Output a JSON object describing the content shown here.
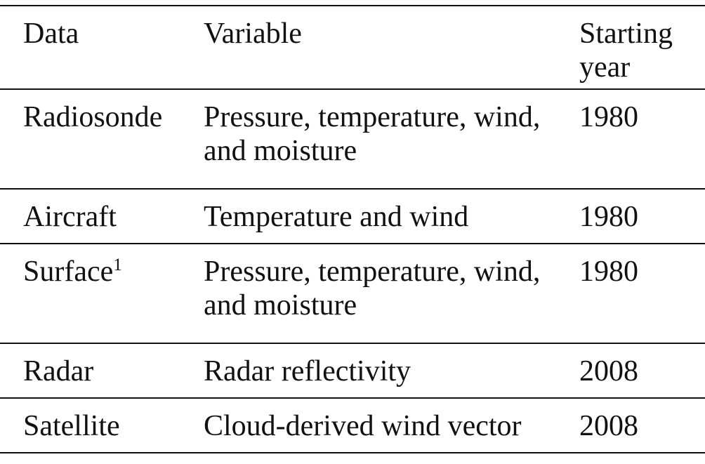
{
  "page": {
    "background_color": "#ffffff",
    "text_color": "#111111",
    "rule_color": "#121212"
  },
  "table": {
    "headers": [
      "Data",
      "Variable",
      "Starting year"
    ],
    "rows": [
      {
        "data": "Radiosonde",
        "sup": "",
        "variable": "Pressure, temperature, wind, and moisture",
        "starting_year": "1980"
      },
      {
        "data": "Aircraft",
        "sup": "",
        "variable": "Temperature and wind",
        "starting_year": "1980"
      },
      {
        "data": "Surface",
        "sup": "1",
        "variable": "Pressure, temperature, wind, and moisture",
        "starting_year": "1980"
      },
      {
        "data": "Radar",
        "sup": "",
        "variable": "Radar reflectivity",
        "starting_year": "2008"
      },
      {
        "data": "Satellite",
        "sup": "",
        "variable": "Cloud-derived wind vector",
        "starting_year": "2008"
      }
    ]
  }
}
